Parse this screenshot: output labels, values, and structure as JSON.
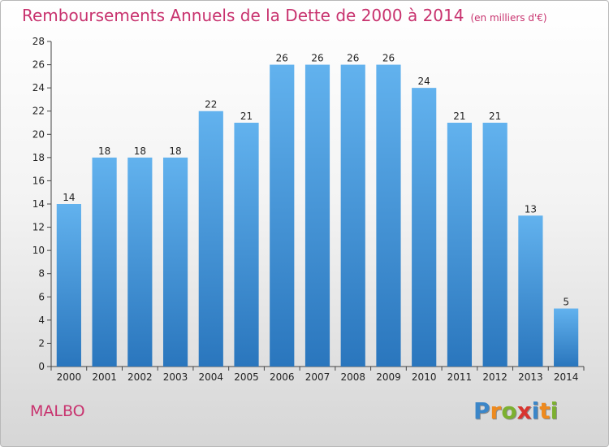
{
  "chart_data": {
    "type": "bar",
    "title": "Remboursements Annuels de la Dette de 2000 à 2014",
    "unit_note": "(en milliers d'€)",
    "categories": [
      "2000",
      "2001",
      "2002",
      "2003",
      "2004",
      "2005",
      "2006",
      "2007",
      "2008",
      "2009",
      "2010",
      "2011",
      "2012",
      "2013",
      "2014"
    ],
    "values": [
      14,
      18,
      18,
      18,
      22,
      21,
      26,
      26,
      26,
      26,
      24,
      21,
      21,
      13,
      5
    ],
    "ylim": [
      0,
      28
    ],
    "yticks": [
      0,
      2,
      4,
      6,
      8,
      10,
      12,
      14,
      16,
      18,
      20,
      22,
      24,
      26,
      28
    ],
    "grid": false,
    "bar_color": "#3a8fd6",
    "bar_color_light": "#62b2ee",
    "bar_color_dark": "#2a76bd"
  },
  "commune": "MALBO",
  "logo": {
    "letters": [
      "P",
      "r",
      "o",
      "x",
      "i",
      "t",
      "i"
    ],
    "colors": [
      "#3b86c8",
      "#ee8a1e",
      "#7cb030",
      "#d8352f",
      "#3b86c8",
      "#ee8a1e",
      "#7cb030"
    ]
  },
  "colors": {
    "accent": "#c8326e"
  }
}
